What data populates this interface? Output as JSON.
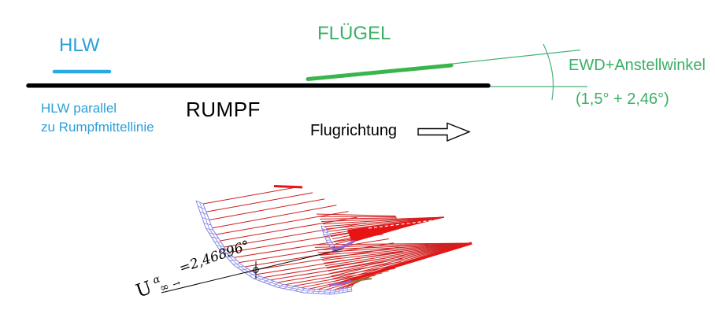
{
  "annotations": {
    "hlw": "HLW",
    "fluegel": "FLÜGEL",
    "rumpf": "RUMPF",
    "hlw_note_1": "HLW parallel",
    "hlw_note_2": "zu Rumpfmittellinie",
    "flugrichtung": "Flugrichtung",
    "ewd_label": "EWD+Anstellwinkel",
    "ewd_value": "(1,5° + 2,46°)"
  },
  "model_label": {
    "u": "U",
    "alpha": "α",
    "infinity": "∞",
    "arrow": "→",
    "value": "=2,46896°"
  },
  "colors": {
    "blue_text": "#2d9fd8",
    "cyan_line": "#29abe2",
    "green_text": "#3bb066",
    "green_wing": "#3ab54e",
    "green_thin": "#46b276",
    "black": "#000000",
    "red_line": "#cf2020",
    "red_thick": "#e81414",
    "mesh_blue": "#8585e8",
    "purple": "#9a63d0",
    "olive": "#8a7a30"
  }
}
